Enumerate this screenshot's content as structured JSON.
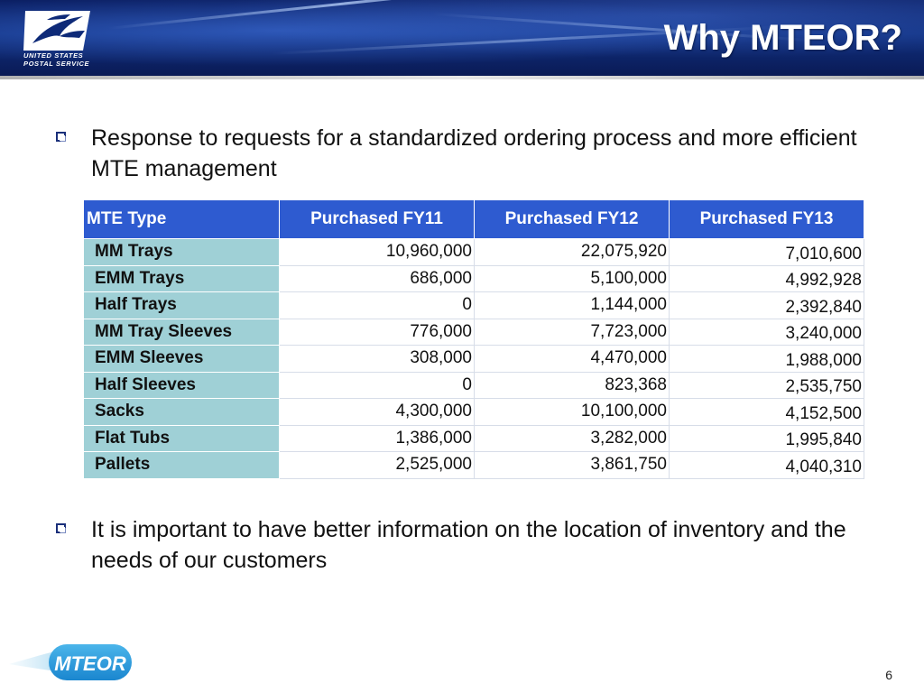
{
  "header": {
    "title": "Why MTEOR?",
    "logo_line1": "UNITED STATES",
    "logo_line2": "POSTAL SERVICE",
    "logo_icon": "eagle-icon"
  },
  "bullets": [
    {
      "text": "Response to requests for a standardized ordering process and more efficient MTE management"
    },
    {
      "text": "It is important to have better information on the location of inventory and the needs of our customers"
    }
  ],
  "table": {
    "headers": [
      "MTE Type",
      "Purchased FY11",
      "Purchased FY12",
      "Purchased FY13"
    ],
    "rows": [
      [
        "MM Trays",
        "10,960,000",
        "22,075,920",
        "7,010,600"
      ],
      [
        "EMM Trays",
        "686,000",
        "5,100,000",
        "4,992,928"
      ],
      [
        "Half Trays",
        "0",
        "1,144,000",
        "2,392,840"
      ],
      [
        "MM Tray Sleeves",
        "776,000",
        "7,723,000",
        "3,240,000"
      ],
      [
        "EMM Sleeves",
        "308,000",
        "4,470,000",
        "1,988,000"
      ],
      [
        "Half Sleeves",
        "0",
        "823,368",
        "2,535,750"
      ],
      [
        "Sacks",
        "4,300,000",
        "10,100,000",
        "4,152,500"
      ],
      [
        "Flat Tubs",
        "1,386,000",
        "3,282,000",
        "1,995,840"
      ],
      [
        "Pallets",
        "2,525,000",
        "3,861,750",
        "4,040,310"
      ]
    ]
  },
  "footer": {
    "logo_text": "MTEOR",
    "page_number": "6"
  },
  "colors": {
    "header_blue": "#10307f",
    "table_header": "#2e5bd0",
    "row_label_bg": "#9fd0d6",
    "bullet_box": "#1a2f7a"
  }
}
